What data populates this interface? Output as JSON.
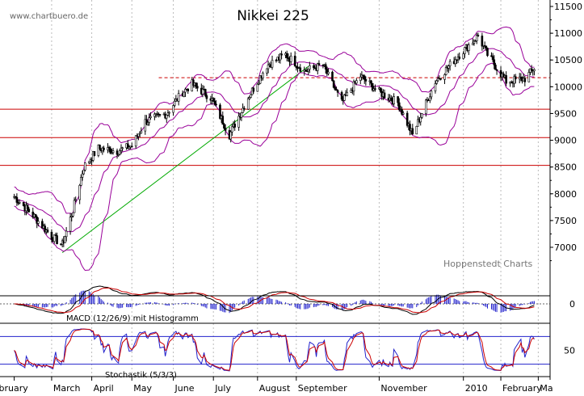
{
  "watermark": "www.chartbuero.de",
  "credit": "Hoppenstedt Charts",
  "chart_data": [
    {
      "type": "candlestick",
      "title": "Nikkei 225",
      "x_labels": [
        "February",
        "March",
        "April",
        "May",
        "June",
        "July",
        "August",
        "September",
        "November",
        "2010",
        "February",
        "Ma"
      ],
      "y_ticks": [
        7000,
        7500,
        8000,
        8500,
        9000,
        9500,
        10000,
        10500,
        11000,
        11500
      ],
      "ylim": [
        6500,
        11650
      ],
      "horizontal_lines": [
        {
          "value": 9580,
          "color": "#cc0000",
          "style": "solid"
        },
        {
          "value": 9050,
          "color": "#cc0000",
          "style": "solid"
        },
        {
          "value": 8530,
          "color": "#cc0000",
          "style": "solid"
        },
        {
          "value": 10170,
          "color": "#cc0000",
          "style": "dashed"
        }
      ],
      "trendline": {
        "color": "#00aa00",
        "from": {
          "date": "2009-03-10",
          "value": 6900
        },
        "to": {
          "date": "2009-09-10",
          "value": 10380
        }
      },
      "indicators": [
        "Bollinger Bands"
      ],
      "price_path": [
        {
          "date": "2009-02-02",
          "value": 7950
        },
        {
          "date": "2009-02-16",
          "value": 7600
        },
        {
          "date": "2009-03-02",
          "value": 7200
        },
        {
          "date": "2009-03-10",
          "value": 7050
        },
        {
          "date": "2009-03-18",
          "value": 7700
        },
        {
          "date": "2009-03-26",
          "value": 8500
        },
        {
          "date": "2009-04-06",
          "value": 8850
        },
        {
          "date": "2009-04-20",
          "value": 8800
        },
        {
          "date": "2009-05-01",
          "value": 8900
        },
        {
          "date": "2009-05-11",
          "value": 9350
        },
        {
          "date": "2009-05-27",
          "value": 9500
        },
        {
          "date": "2009-06-08",
          "value": 9900
        },
        {
          "date": "2009-06-15",
          "value": 10050
        },
        {
          "date": "2009-06-29",
          "value": 9800
        },
        {
          "date": "2009-07-13",
          "value": 9100
        },
        {
          "date": "2009-07-27",
          "value": 9800
        },
        {
          "date": "2009-08-10",
          "value": 10400
        },
        {
          "date": "2009-08-24",
          "value": 10600
        },
        {
          "date": "2009-09-07",
          "value": 10300
        },
        {
          "date": "2009-09-21",
          "value": 10400
        },
        {
          "date": "2009-10-05",
          "value": 9700
        },
        {
          "date": "2009-10-19",
          "value": 10200
        },
        {
          "date": "2009-11-02",
          "value": 9900
        },
        {
          "date": "2009-11-16",
          "value": 9700
        },
        {
          "date": "2009-11-27",
          "value": 9100
        },
        {
          "date": "2009-12-14",
          "value": 10100
        },
        {
          "date": "2009-12-30",
          "value": 10550
        },
        {
          "date": "2010-01-15",
          "value": 10950
        },
        {
          "date": "2010-01-22",
          "value": 10600
        },
        {
          "date": "2010-02-05",
          "value": 10100
        },
        {
          "date": "2010-02-19",
          "value": 10150
        },
        {
          "date": "2010-02-26",
          "value": 10350
        }
      ]
    },
    {
      "type": "line",
      "title": "MACD (12/26/9) mit Histogramm",
      "y_ticks": [
        0
      ],
      "series": [
        {
          "color": "#000000"
        },
        {
          "color": "#cc0000"
        },
        {
          "color": "#2222cc"
        }
      ],
      "zero_line": true
    },
    {
      "type": "line",
      "title": "Stochastik (5/3/3)",
      "y_ticks": [
        50
      ],
      "ylim": [
        0,
        100
      ],
      "bands": [
        20,
        80
      ],
      "series": [
        {
          "color": "#2222cc"
        },
        {
          "color": "#cc0000"
        }
      ]
    }
  ]
}
